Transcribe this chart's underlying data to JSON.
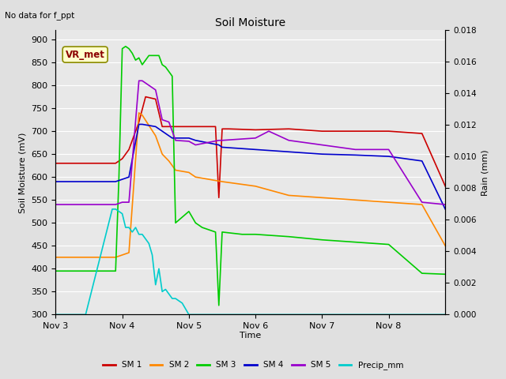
{
  "title": "Soil Moisture",
  "subtitle": "No data for f_ppt",
  "xlabel": "Time",
  "ylabel_left": "Soil Moisture (mV)",
  "ylabel_right": "Rain (mm)",
  "ylim_left": [
    300,
    920
  ],
  "ylim_right": [
    0.0,
    0.018
  ],
  "yticks_left": [
    300,
    350,
    400,
    450,
    500,
    550,
    600,
    650,
    700,
    750,
    800,
    850,
    900
  ],
  "yticks_right": [
    0.0,
    0.002,
    0.004,
    0.006,
    0.008,
    0.01,
    0.012,
    0.014,
    0.016,
    0.018
  ],
  "xtick_positions": [
    0,
    1,
    2,
    3,
    4,
    5
  ],
  "xtick_labels": [
    "Nov 3",
    "Nov 4",
    "Nov 5",
    "Nov 6",
    "Nov 7",
    "Nov 8"
  ],
  "xlim": [
    0,
    5.85
  ],
  "figure_bg": "#e0e0e0",
  "plot_bg": "#e8e8e8",
  "grid_color": "#ffffff",
  "annotation_text": "VR_met",
  "annotation_color": "#8B0000",
  "annotation_bg": "#ffffcc",
  "annotation_edge": "#8B8B00",
  "series": {
    "SM1": {
      "color": "#cc0000",
      "x": [
        0.0,
        0.45,
        0.9,
        1.0,
        1.1,
        1.25,
        1.35,
        1.5,
        1.6,
        1.65,
        1.75,
        1.85,
        2.0,
        2.4,
        2.45,
        2.5,
        2.6,
        3.0,
        3.5,
        4.0,
        4.5,
        5.0,
        5.5,
        5.85
      ],
      "y": [
        630,
        630,
        630,
        640,
        660,
        720,
        775,
        770,
        710,
        710,
        710,
        710,
        710,
        710,
        555,
        705,
        705,
        703,
        705,
        700,
        700,
        700,
        695,
        580
      ]
    },
    "SM2": {
      "color": "#ff8800",
      "x": [
        0.0,
        0.45,
        0.9,
        1.0,
        1.1,
        1.25,
        1.3,
        1.5,
        1.6,
        1.7,
        1.8,
        2.0,
        2.1,
        2.3,
        2.5,
        3.0,
        3.5,
        4.0,
        4.5,
        5.0,
        5.5,
        5.85
      ],
      "y": [
        425,
        425,
        425,
        430,
        435,
        740,
        735,
        690,
        650,
        635,
        615,
        610,
        600,
        595,
        590,
        580,
        560,
        555,
        550,
        545,
        540,
        450
      ]
    },
    "SM3": {
      "color": "#00cc00",
      "x": [
        0.0,
        0.45,
        0.9,
        0.95,
        1.0,
        1.05,
        1.1,
        1.15,
        1.2,
        1.25,
        1.3,
        1.35,
        1.4,
        1.5,
        1.55,
        1.6,
        1.65,
        1.7,
        1.75,
        1.8,
        2.0,
        2.1,
        2.15,
        2.2,
        2.3,
        2.4,
        2.45,
        2.5,
        2.8,
        3.0,
        3.5,
        4.0,
        4.5,
        5.0,
        5.5,
        5.85
      ],
      "y": [
        395,
        395,
        395,
        600,
        880,
        885,
        880,
        870,
        855,
        860,
        845,
        855,
        865,
        865,
        865,
        845,
        840,
        830,
        820,
        500,
        525,
        500,
        495,
        490,
        485,
        480,
        320,
        480,
        475,
        475,
        470,
        463,
        458,
        453,
        390,
        388
      ]
    },
    "SM4": {
      "color": "#0000cc",
      "x": [
        0.0,
        0.45,
        0.9,
        1.0,
        1.1,
        1.25,
        1.3,
        1.5,
        1.6,
        1.65,
        1.75,
        2.0,
        2.1,
        2.45,
        2.5,
        3.0,
        3.5,
        4.0,
        4.5,
        5.0,
        5.5,
        5.85
      ],
      "y": [
        590,
        590,
        590,
        595,
        600,
        715,
        715,
        710,
        700,
        695,
        685,
        685,
        680,
        670,
        665,
        660,
        655,
        650,
        648,
        645,
        635,
        530
      ]
    },
    "SM5": {
      "color": "#9900cc",
      "x": [
        0.0,
        0.45,
        0.9,
        1.0,
        1.1,
        1.25,
        1.3,
        1.5,
        1.6,
        1.7,
        1.8,
        2.0,
        2.1,
        2.45,
        2.5,
        3.0,
        3.2,
        3.5,
        4.0,
        4.5,
        5.0,
        5.5,
        5.85
      ],
      "y": [
        540,
        540,
        540,
        545,
        545,
        810,
        810,
        790,
        725,
        720,
        680,
        678,
        670,
        680,
        680,
        685,
        700,
        680,
        670,
        660,
        660,
        545,
        540
      ]
    },
    "Precip": {
      "color": "#00cccc",
      "x": [
        0.0,
        0.45,
        0.85,
        0.9,
        0.95,
        1.0,
        1.05,
        1.1,
        1.15,
        1.2,
        1.25,
        1.3,
        1.35,
        1.4,
        1.45,
        1.5,
        1.55,
        1.6,
        1.65,
        1.75,
        1.8,
        1.85,
        1.9,
        2.0,
        2.1,
        2.45,
        5.85
      ],
      "y": [
        300,
        300,
        530,
        530,
        525,
        520,
        490,
        490,
        480,
        490,
        475,
        475,
        465,
        455,
        430,
        365,
        400,
        350,
        355,
        335,
        335,
        330,
        325,
        300,
        300,
        300,
        300
      ]
    }
  },
  "legend": [
    {
      "label": "SM 1",
      "color": "#cc0000"
    },
    {
      "label": "SM 2",
      "color": "#ff8800"
    },
    {
      "label": "SM 3",
      "color": "#00cc00"
    },
    {
      "label": "SM 4",
      "color": "#0000cc"
    },
    {
      "label": "SM 5",
      "color": "#9900cc"
    },
    {
      "label": "Precip_mm",
      "color": "#00cccc"
    }
  ]
}
